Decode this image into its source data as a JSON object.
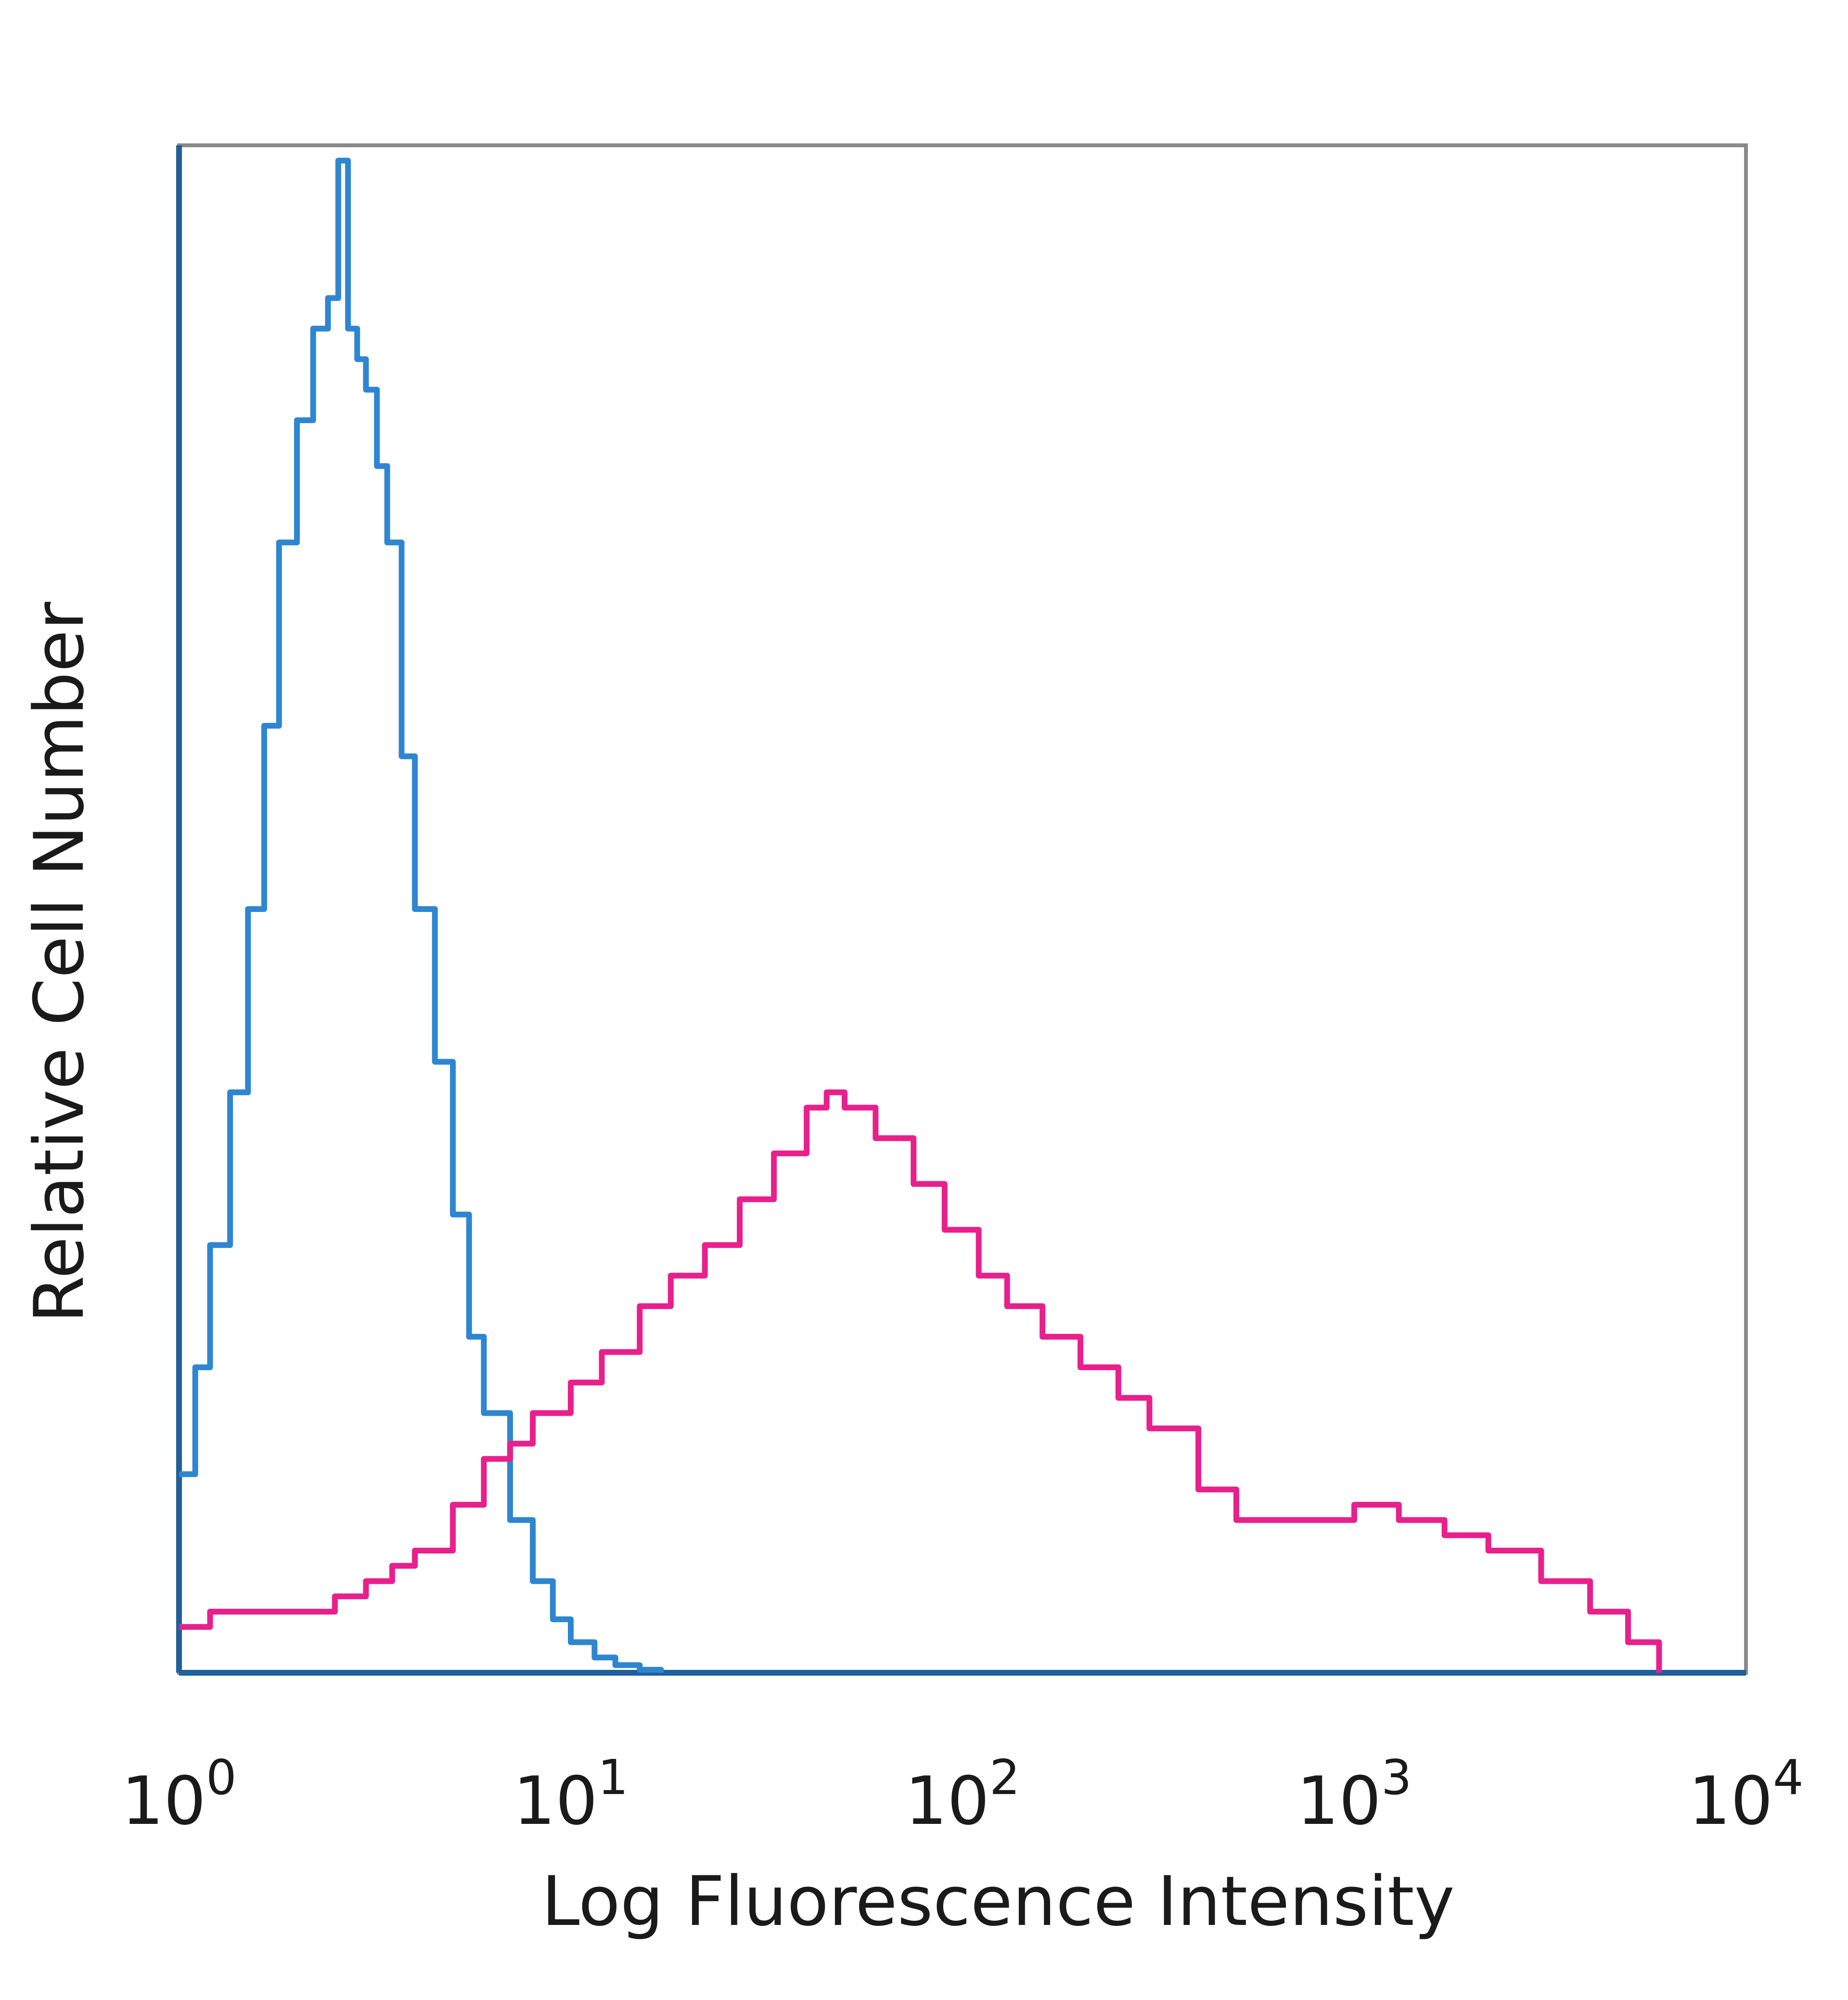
{
  "chart_data": {
    "type": "line",
    "subtype": "histogram",
    "title": "",
    "xlabel": "Log Fluorescence Intensity",
    "ylabel": "Relative Cell Number",
    "x_scale": "log",
    "xlim": [
      1,
      10000
    ],
    "ylim": [
      0,
      1
    ],
    "x_ticks": [
      {
        "value": 1,
        "base": "10",
        "exp": "0"
      },
      {
        "value": 10,
        "base": "10",
        "exp": "1"
      },
      {
        "value": 100,
        "base": "10",
        "exp": "2"
      },
      {
        "value": 1000,
        "base": "10",
        "exp": "3"
      },
      {
        "value": 10000,
        "base": "10",
        "exp": "4"
      }
    ],
    "grid": false,
    "legend": "none",
    "series": [
      {
        "color": "#2e86d1",
        "x": [
          1.0,
          1.1,
          1.2,
          1.35,
          1.5,
          1.65,
          1.8,
          2.0,
          2.2,
          2.4,
          2.55,
          2.7,
          2.85,
          3.0,
          3.2,
          3.4,
          3.7,
          4.0,
          4.5,
          5.0,
          5.5,
          6.0,
          7.0,
          8.0,
          9.0,
          10.0,
          11.5,
          13.0,
          15.0,
          17.0
        ],
        "y": [
          0.13,
          0.2,
          0.28,
          0.38,
          0.5,
          0.62,
          0.74,
          0.82,
          0.88,
          0.9,
          0.99,
          0.88,
          0.86,
          0.84,
          0.79,
          0.74,
          0.6,
          0.5,
          0.4,
          0.3,
          0.22,
          0.17,
          0.1,
          0.06,
          0.035,
          0.02,
          0.01,
          0.005,
          0.002,
          0.0
        ]
      },
      {
        "color": "#e8208c",
        "x": [
          1.0,
          1.2,
          1.5,
          2.0,
          2.5,
          3.0,
          3.5,
          4.0,
          5.0,
          6.0,
          7.0,
          8.0,
          10.0,
          12.0,
          15.0,
          18.0,
          22.0,
          27.0,
          33.0,
          40.0,
          45.0,
          50.0,
          60.0,
          75.0,
          90.0,
          110.0,
          130.0,
          160.0,
          200.0,
          250.0,
          300.0,
          400.0,
          500.0,
          700.0,
          1000.0,
          1300.0,
          1700.0,
          2200.0,
          3000.0,
          4000.0,
          5000.0,
          6000.0
        ],
        "y": [
          0.03,
          0.04,
          0.04,
          0.04,
          0.05,
          0.06,
          0.07,
          0.08,
          0.11,
          0.14,
          0.15,
          0.17,
          0.19,
          0.21,
          0.24,
          0.26,
          0.28,
          0.31,
          0.34,
          0.37,
          0.38,
          0.37,
          0.35,
          0.32,
          0.29,
          0.26,
          0.24,
          0.22,
          0.2,
          0.18,
          0.16,
          0.12,
          0.1,
          0.1,
          0.11,
          0.1,
          0.09,
          0.08,
          0.06,
          0.04,
          0.02,
          0.0
        ]
      }
    ]
  }
}
